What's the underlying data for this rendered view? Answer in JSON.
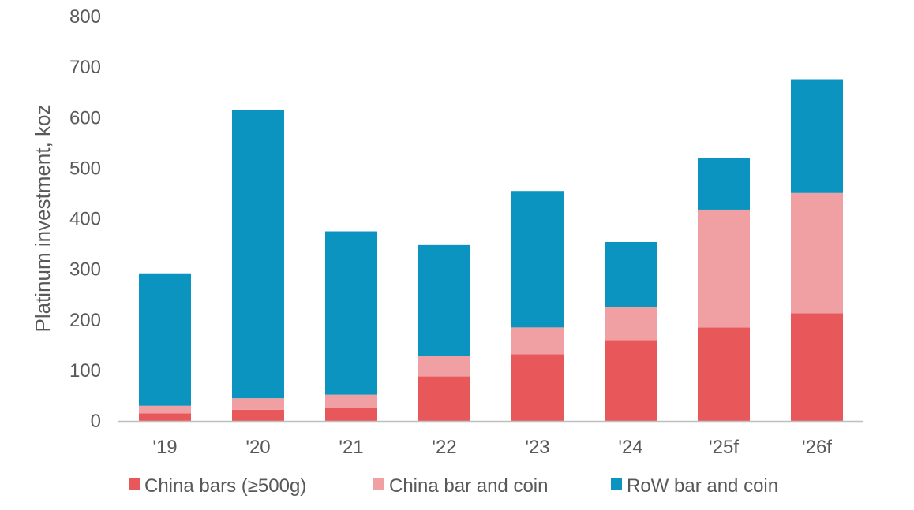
{
  "chart_data": {
    "type": "bar",
    "stacked": true,
    "title": "",
    "xlabel": "",
    "ylabel": "Platinum investment, koz",
    "ylim": [
      0,
      800
    ],
    "yticks": [
      "0",
      "100",
      "200",
      "300",
      "400",
      "500",
      "600",
      "700",
      "800"
    ],
    "categories": [
      "'19",
      "'20",
      "'21",
      "'22",
      "'23",
      "'24",
      "'25f",
      "'26f"
    ],
    "series": [
      {
        "name": "China bars (≥500g)",
        "color": "#e8585a",
        "values": [
          15,
          22,
          25,
          88,
          132,
          160,
          185,
          213
        ]
      },
      {
        "name": "China bar and coin",
        "color": "#f0a0a2",
        "values": [
          15,
          23,
          27,
          40,
          53,
          65,
          233,
          238
        ]
      },
      {
        "name": "RoW bar and coin",
        "color": "#0a94bf",
        "values": [
          262,
          570,
          323,
          220,
          270,
          129,
          102,
          225
        ]
      }
    ],
    "grid": false,
    "legend_position": "bottom"
  }
}
